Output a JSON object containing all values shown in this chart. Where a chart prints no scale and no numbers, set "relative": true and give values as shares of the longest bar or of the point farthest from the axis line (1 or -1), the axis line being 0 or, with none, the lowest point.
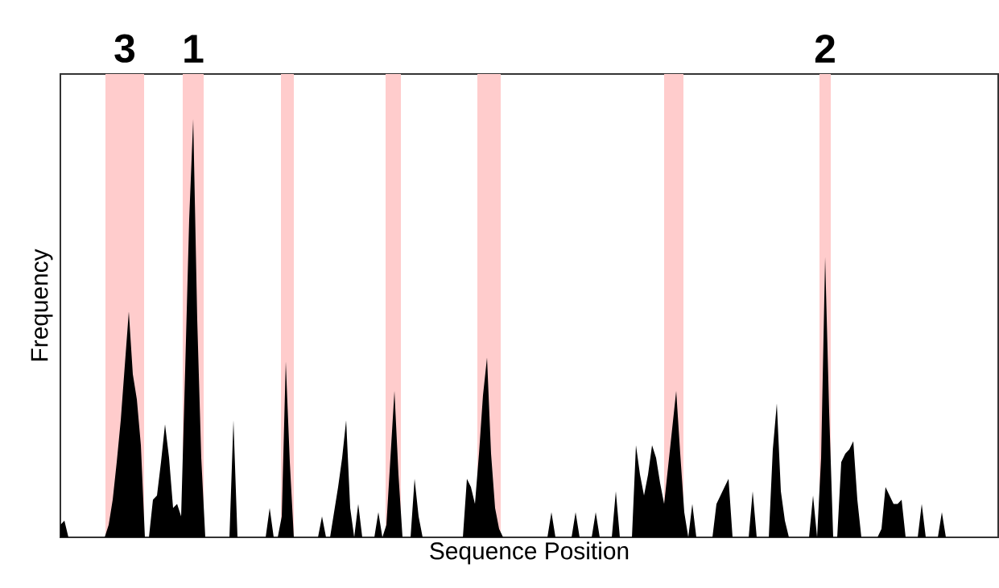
{
  "chart_data": {
    "type": "area",
    "relative": true,
    "xlabel": "Sequence Position",
    "ylabel": "Frequency",
    "tick_labels": false,
    "categories": [
      null,
      null,
      null,
      null,
      null,
      null,
      null,
      null,
      null,
      null,
      null,
      null,
      null,
      null,
      null,
      null,
      null,
      null,
      null,
      null,
      null,
      null,
      null,
      null,
      null,
      null,
      null,
      null,
      null,
      null,
      null,
      null,
      null,
      null,
      null,
      null,
      null,
      null,
      null,
      null,
      null,
      null,
      null,
      null,
      null,
      null,
      null,
      null,
      null,
      null,
      null,
      null,
      null,
      null,
      null,
      null,
      null,
      null,
      null,
      null,
      null,
      null,
      null,
      null,
      null,
      null,
      null,
      null,
      null,
      null,
      null,
      null,
      null,
      null,
      null,
      null,
      null,
      null,
      null,
      null,
      null,
      null,
      null,
      null,
      null,
      null,
      null,
      null,
      null,
      null,
      null,
      null,
      null,
      null,
      null,
      null,
      null,
      null,
      null,
      null,
      null,
      null,
      null,
      null,
      null,
      null,
      null,
      null,
      null,
      null,
      null,
      null,
      null,
      null,
      null,
      null,
      null,
      null,
      null,
      null,
      null,
      null,
      null,
      null,
      null,
      null,
      null,
      null,
      null,
      null,
      null,
      null,
      null,
      null,
      null,
      null,
      null,
      null,
      null,
      null,
      null,
      null,
      null,
      null,
      null,
      null,
      null,
      null,
      null,
      null,
      null,
      null,
      null,
      null,
      null,
      null,
      null,
      null,
      null,
      null,
      null,
      null,
      null,
      null,
      null,
      null,
      null,
      null,
      null,
      null,
      null,
      null,
      null,
      null,
      null,
      null,
      null,
      null,
      null,
      null,
      null,
      null,
      null,
      null,
      null,
      null,
      null,
      null,
      null,
      null,
      null,
      null,
      null,
      null,
      null,
      null,
      null,
      null,
      null,
      null,
      null,
      null,
      null,
      null,
      null,
      null,
      null,
      null,
      null,
      null,
      null,
      null,
      null,
      null,
      null,
      null,
      null,
      null,
      null,
      null,
      null,
      null,
      null,
      null,
      null,
      null,
      null,
      null,
      null,
      null,
      null,
      null,
      null,
      null
    ],
    "series": [
      {
        "color": "#000000",
        "values": [
          0.03,
          0.04,
          0,
          0,
          0,
          0,
          0,
          0,
          0,
          0,
          0,
          0,
          0.03,
          0.09,
          0.18,
          0.28,
          0.41,
          0.54,
          0.39,
          0.33,
          0.22,
          0,
          0,
          0.09,
          0.1,
          0.18,
          0.27,
          0.19,
          0.07,
          0.08,
          0.05,
          0.4,
          0.76,
          1.0,
          0.52,
          0.19,
          0,
          0,
          0,
          0,
          0,
          0,
          0,
          0.28,
          0,
          0,
          0,
          0,
          0,
          0,
          0,
          0,
          0.07,
          0,
          0,
          0.05,
          0.42,
          0.18,
          0,
          0,
          0,
          0,
          0,
          0,
          0,
          0.05,
          0,
          0,
          0.06,
          0.12,
          0.19,
          0.28,
          0.07,
          0,
          0.08,
          0,
          0,
          0,
          0,
          0.06,
          0,
          0.03,
          0.19,
          0.35,
          0.15,
          0,
          0,
          0,
          0.14,
          0.05,
          0,
          0,
          0,
          0,
          0,
          0,
          0,
          0,
          0,
          0,
          0,
          0.14,
          0.12,
          0.08,
          0.2,
          0.34,
          0.43,
          0.2,
          0.07,
          0.02,
          0,
          0,
          0,
          0,
          0,
          0,
          0,
          0,
          0,
          0,
          0,
          0,
          0.06,
          0,
          0,
          0,
          0,
          0,
          0.06,
          0,
          0,
          0,
          0,
          0.06,
          0,
          0,
          0,
          0,
          0.11,
          0,
          0,
          0,
          0,
          0.22,
          0.15,
          0.1,
          0.15,
          0.22,
          0.19,
          0.13,
          0.08,
          0.17,
          0.26,
          0.35,
          0.2,
          0.06,
          0,
          0.08,
          0,
          0,
          0,
          0,
          0,
          0.08,
          0.1,
          0.12,
          0.14,
          0,
          0,
          0,
          0,
          0,
          0.11,
          0,
          0,
          0,
          0,
          0.21,
          0.32,
          0.11,
          0.04,
          0,
          0,
          0,
          0,
          0,
          0,
          0.1,
          0,
          0.19,
          0.67,
          0.3,
          0,
          0,
          0.18,
          0.2,
          0.21,
          0.23,
          0.09,
          0,
          0,
          0,
          0,
          0,
          0.02,
          0.12,
          0.1,
          0.08,
          0.08,
          0.09,
          0,
          0,
          0,
          0,
          0.08,
          0,
          0,
          0,
          0,
          0.06,
          0,
          0,
          0,
          0,
          0,
          0,
          0,
          0,
          0,
          0,
          0,
          0,
          0,
          0
        ]
      }
    ],
    "annotations": [
      "3",
      "1",
      "2"
    ]
  }
}
